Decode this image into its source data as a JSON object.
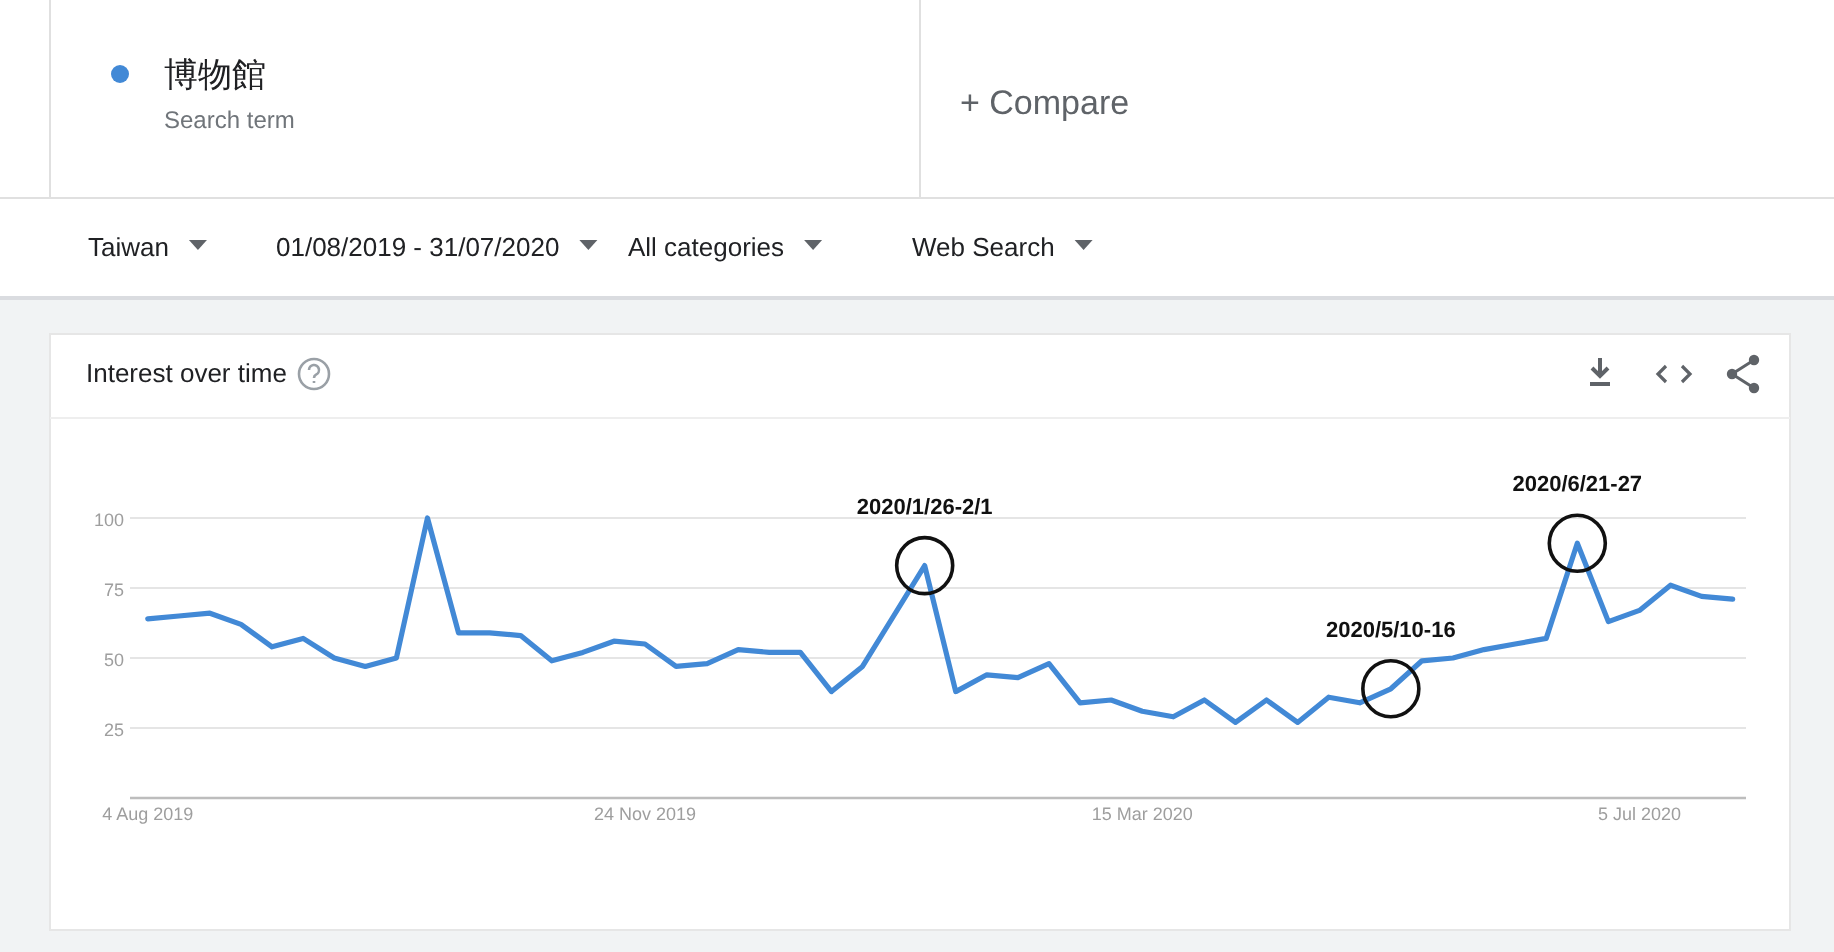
{
  "chart_data": {
    "type": "line",
    "title": "Interest over time",
    "x": [
      "2019-08-04",
      "2019-08-11",
      "2019-08-18",
      "2019-08-25",
      "2019-09-01",
      "2019-09-08",
      "2019-09-15",
      "2019-09-22",
      "2019-09-29",
      "2019-10-06",
      "2019-10-13",
      "2019-10-20",
      "2019-10-27",
      "2019-11-03",
      "2019-11-10",
      "2019-11-17",
      "2019-11-24",
      "2019-12-01",
      "2019-12-08",
      "2019-12-15",
      "2019-12-22",
      "2019-12-29",
      "2020-01-05",
      "2020-01-12",
      "2020-01-19",
      "2020-01-26",
      "2020-02-02",
      "2020-02-09",
      "2020-02-16",
      "2020-02-23",
      "2020-03-01",
      "2020-03-08",
      "2020-03-15",
      "2020-03-22",
      "2020-03-29",
      "2020-04-05",
      "2020-04-12",
      "2020-04-19",
      "2020-04-26",
      "2020-05-03",
      "2020-05-10",
      "2020-05-17",
      "2020-05-24",
      "2020-05-31",
      "2020-06-07",
      "2020-06-14",
      "2020-06-21",
      "2020-06-28",
      "2020-07-05",
      "2020-07-12",
      "2020-07-19",
      "2020-07-26"
    ],
    "series": [
      {
        "name": "博物館",
        "color": "#4289d6",
        "values": [
          64,
          65,
          66,
          62,
          54,
          57,
          50,
          47,
          50,
          100,
          59,
          59,
          58,
          49,
          52,
          56,
          55,
          47,
          48,
          53,
          52,
          52,
          38,
          47,
          65,
          83,
          38,
          44,
          43,
          48,
          34,
          35,
          31,
          29,
          35,
          27,
          35,
          27,
          36,
          34,
          39,
          49,
          50,
          53,
          55,
          57,
          91,
          63,
          67,
          76,
          72,
          71
        ]
      }
    ],
    "xlim": [
      "2019-07-31",
      "2020-07-29"
    ],
    "xticks": [
      {
        "value": "2019-08-04",
        "label": "4 Aug 2019"
      },
      {
        "value": "2019-11-24",
        "label": "24 Nov 2019"
      },
      {
        "value": "2020-03-15",
        "label": "15 Mar 2020"
      },
      {
        "value": "2020-07-05",
        "label": "5 Jul 2020"
      }
    ],
    "ylim": [
      0,
      100
    ],
    "yticks": [
      {
        "value": 0,
        "label": null
      },
      25,
      50,
      75,
      100
    ],
    "grid": "y",
    "legend": "top left",
    "annotations": [
      "Search term",
      "+ Compare",
      "Taiwan",
      "01/08/2019 - 31/07/2020",
      "All categories",
      "Web Search",
      {
        "text": "2020/1/26-2/1",
        "x": "2020-01-26",
        "y": 83
      },
      {
        "text": "2020/5/10-16",
        "x": "2020-05-10",
        "y": 39
      },
      {
        "text": "2020/6/21-27",
        "x": "2020-06-21",
        "y": 91
      }
    ]
  }
}
